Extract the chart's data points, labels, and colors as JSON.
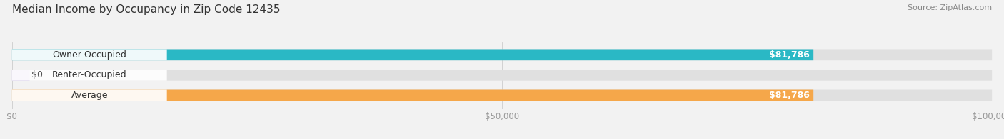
{
  "title": "Median Income by Occupancy in Zip Code 12435",
  "source": "Source: ZipAtlas.com",
  "categories": [
    "Owner-Occupied",
    "Renter-Occupied",
    "Average"
  ],
  "values": [
    81786,
    0,
    81786
  ],
  "bar_colors": [
    "#2ab8c5",
    "#b39ddb",
    "#f5a74a"
  ],
  "value_labels": [
    "$81,786",
    "$0",
    "$81,786"
  ],
  "xlim": [
    0,
    100000
  ],
  "xticks": [
    0,
    50000,
    100000
  ],
  "xtick_labels": [
    "$0",
    "$50,000",
    "$100,000"
  ],
  "bar_height": 0.55,
  "background_color": "#f2f2f2",
  "bar_bg_color": "#e0e0e0",
  "title_fontsize": 11,
  "source_fontsize": 8,
  "label_fontsize": 9,
  "tick_fontsize": 8.5
}
